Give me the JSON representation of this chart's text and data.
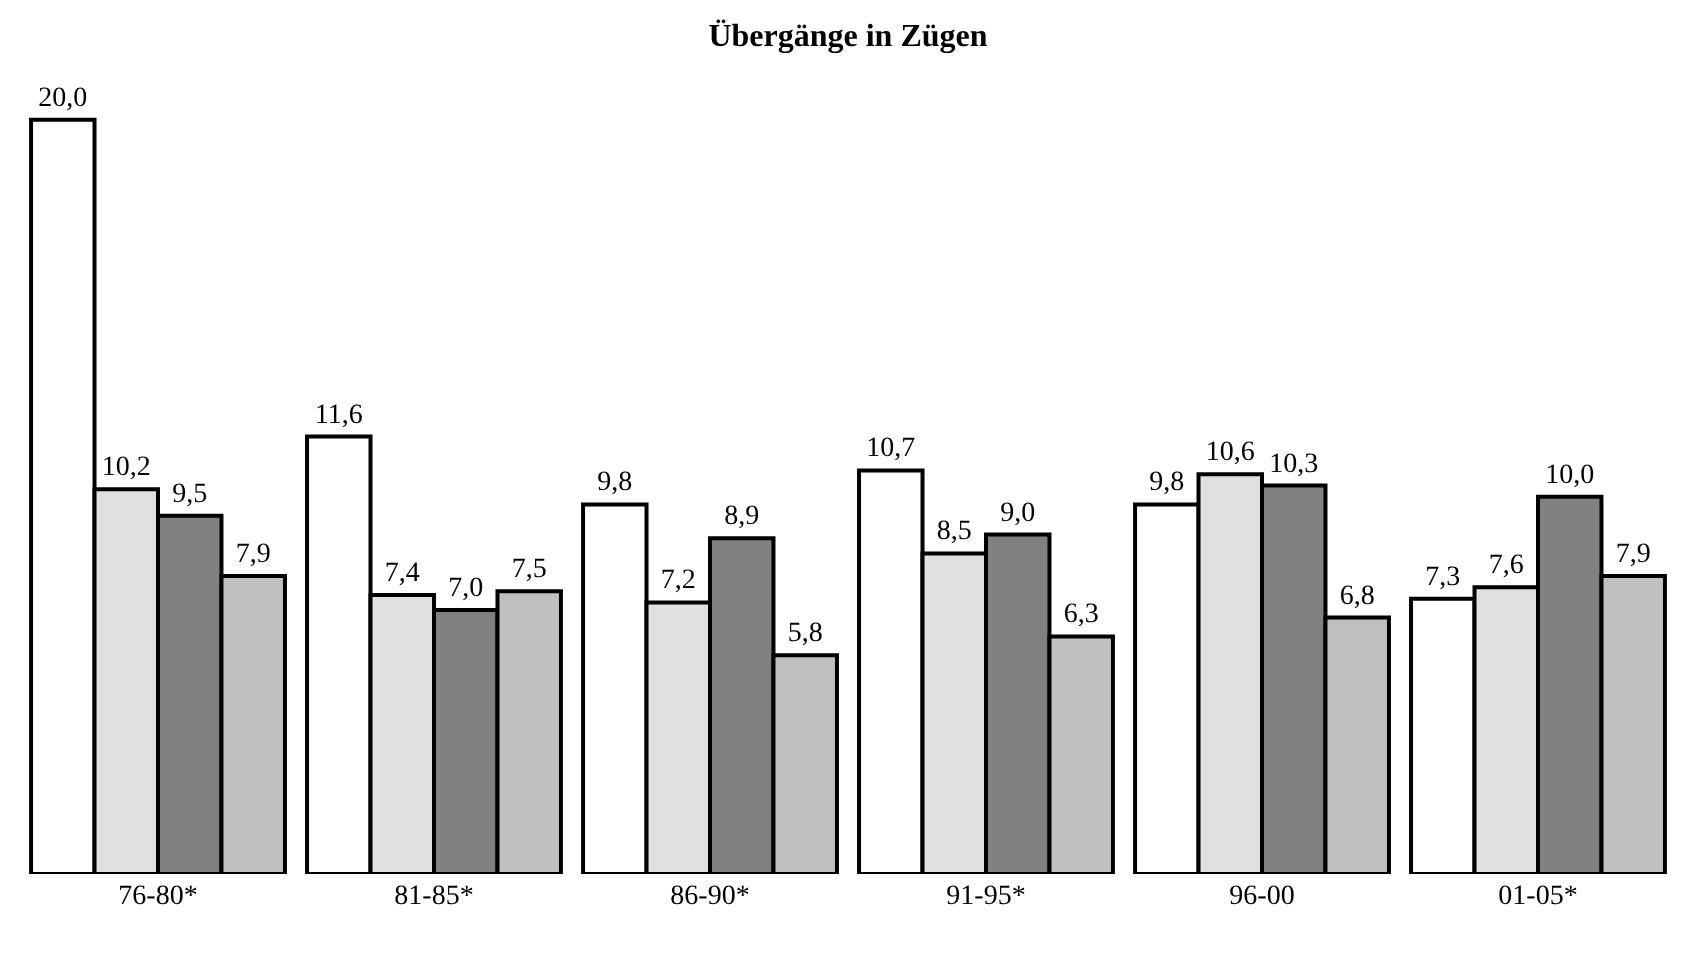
{
  "chart_data": {
    "type": "bar",
    "title": "Übergänge in Zügen",
    "categories": [
      "76-80*",
      "81-85*",
      "86-90*",
      "91-95*",
      "96-00",
      "01-05*"
    ],
    "series": [
      {
        "color": "#ffffff",
        "values": [
          20.0,
          11.6,
          9.8,
          10.7,
          9.8,
          7.3
        ],
        "value_labels": [
          "20,0",
          "11,6",
          "9,8",
          "10,7",
          "9,8",
          "7,3"
        ]
      },
      {
        "color": "#e0e0e0",
        "values": [
          10.2,
          7.4,
          7.2,
          8.5,
          10.6,
          7.6
        ],
        "value_labels": [
          "10,2",
          "7,4",
          "7,2",
          "8,5",
          "10,6",
          "7,6"
        ]
      },
      {
        "color": "#808080",
        "values": [
          9.5,
          7.0,
          8.9,
          9.0,
          10.3,
          10.0
        ],
        "value_labels": [
          "9,5",
          "7,0",
          "8,9",
          "9,0",
          "10,3",
          "10,0"
        ]
      },
      {
        "color": "#c0c0c0",
        "values": [
          7.9,
          7.5,
          5.8,
          6.3,
          6.8,
          7.9
        ],
        "value_labels": [
          "7,9",
          "7,5",
          "5,8",
          "6,3",
          "6,8",
          "7,9"
        ]
      }
    ],
    "grid": false,
    "legend": false
  }
}
